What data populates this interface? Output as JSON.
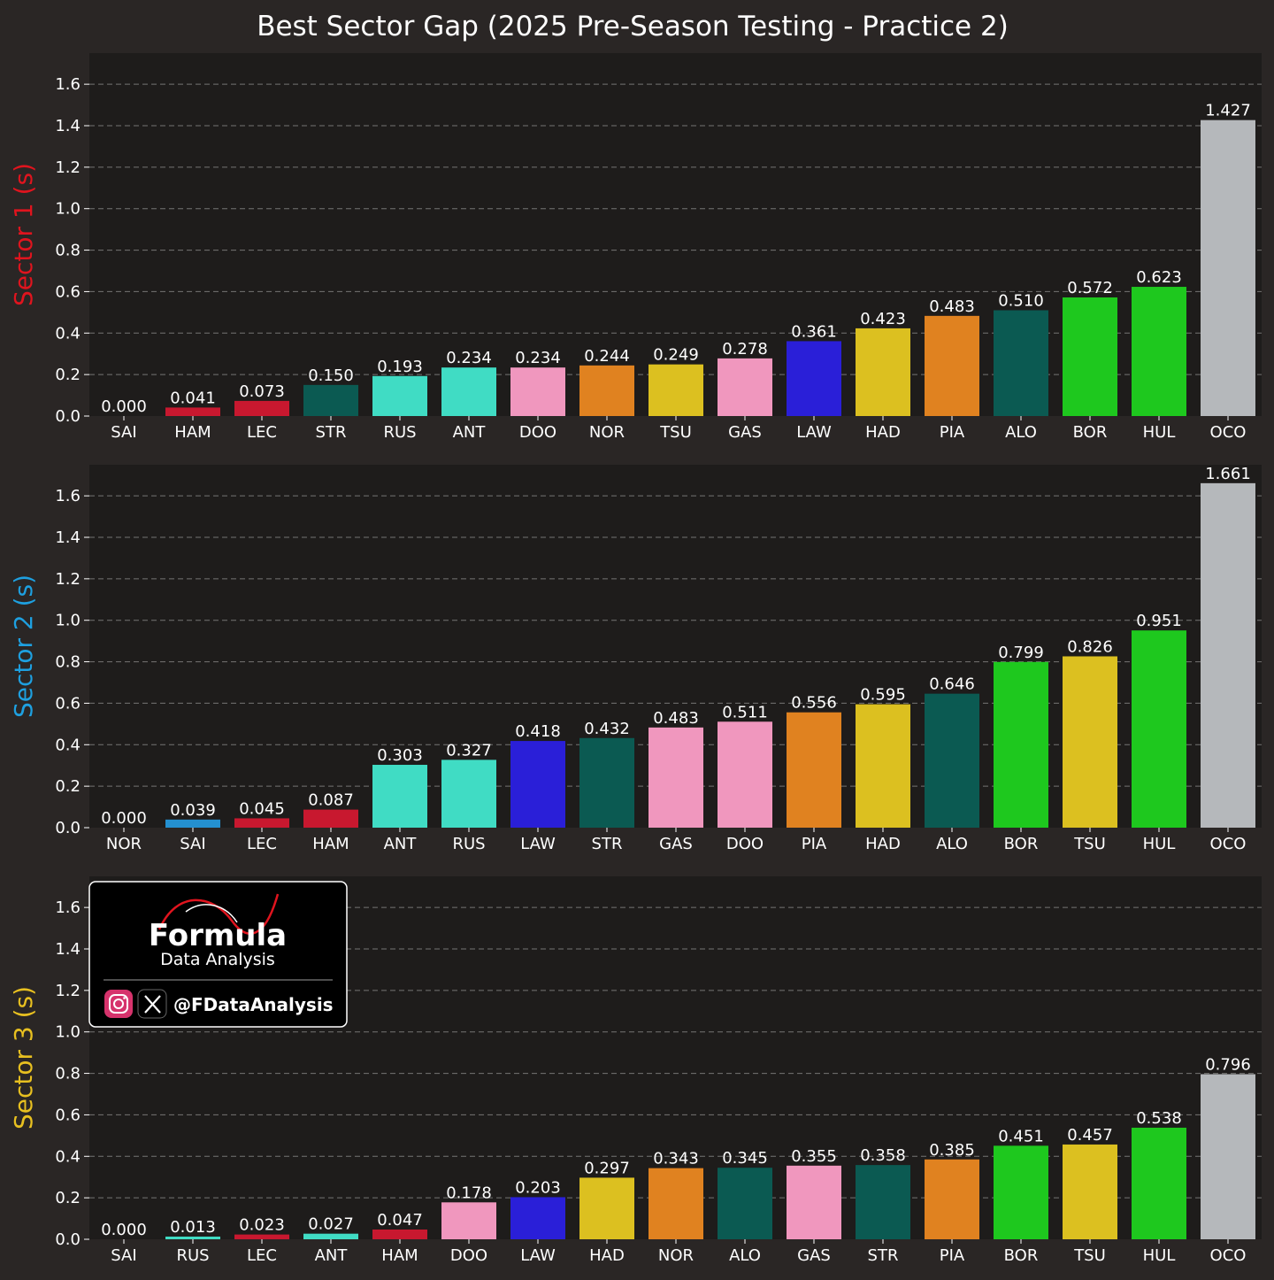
{
  "title": "Best Sector Gap (2025 Pre-Season Testing - Practice 2)",
  "theme": {
    "figure_bg": "#2a2625",
    "axes_bg": "#1e1c1b",
    "grid_color": "#8a8a8a",
    "text_color": "#ffffff"
  },
  "team_colors": {
    "ferrari": "#c8182f",
    "aston_martin": "#0b5a52",
    "mercedes": "#40dcc4",
    "alpine": "#f097be",
    "mclaren": "#e08220",
    "racing_bulls": "#dcc020",
    "red_bull": "#2a1fd8",
    "sauber": "#1ec81e",
    "haas": "#b5b8bb",
    "williams": "#2490d0"
  },
  "watermark": {
    "brand_line1": "Formula",
    "brand_line2": "Data Analysis",
    "handle": "@FDataAnalysis"
  },
  "chart_data": [
    {
      "type": "bar",
      "ylabel": "Sector 1 (s)",
      "ylabel_color": "#e0141e",
      "ylim": [
        0,
        1.75
      ],
      "yticks": [
        "0.0",
        "0.2",
        "0.4",
        "0.6",
        "0.8",
        "1.0",
        "1.2",
        "1.4",
        "1.6"
      ],
      "grid": true,
      "categories": [
        "SAI",
        "HAM",
        "LEC",
        "STR",
        "RUS",
        "ANT",
        "DOO",
        "NOR",
        "TSU",
        "GAS",
        "LAW",
        "HAD",
        "PIA",
        "ALO",
        "BOR",
        "HUL",
        "OCO"
      ],
      "values": [
        0.0,
        0.041,
        0.073,
        0.15,
        0.193,
        0.234,
        0.234,
        0.244,
        0.249,
        0.278,
        0.361,
        0.423,
        0.483,
        0.51,
        0.572,
        0.623,
        1.427
      ],
      "labels": [
        "0.000",
        "0.041",
        "0.073",
        "0.150",
        "0.193",
        "0.234",
        "0.234",
        "0.244",
        "0.249",
        "0.278",
        "0.361",
        "0.423",
        "0.483",
        "0.510",
        "0.572",
        "0.623",
        "1.427"
      ],
      "colors": [
        "#2490d0",
        "#c8182f",
        "#c8182f",
        "#0b5a52",
        "#40dcc4",
        "#40dcc4",
        "#f097be",
        "#e08220",
        "#dcc020",
        "#f097be",
        "#2a1fd8",
        "#dcc020",
        "#e08220",
        "#0b5a52",
        "#1ec81e",
        "#1ec81e",
        "#b5b8bb"
      ]
    },
    {
      "type": "bar",
      "ylabel": "Sector 2 (s)",
      "ylabel_color": "#1ea0e0",
      "ylim": [
        0,
        1.75
      ],
      "yticks": [
        "0.0",
        "0.2",
        "0.4",
        "0.6",
        "0.8",
        "1.0",
        "1.2",
        "1.4",
        "1.6"
      ],
      "grid": true,
      "categories": [
        "NOR",
        "SAI",
        "LEC",
        "HAM",
        "ANT",
        "RUS",
        "LAW",
        "STR",
        "GAS",
        "DOO",
        "PIA",
        "HAD",
        "ALO",
        "BOR",
        "TSU",
        "HUL",
        "OCO"
      ],
      "values": [
        0.0,
        0.039,
        0.045,
        0.087,
        0.303,
        0.327,
        0.418,
        0.432,
        0.483,
        0.511,
        0.556,
        0.595,
        0.646,
        0.799,
        0.826,
        0.951,
        1.661
      ],
      "labels": [
        "0.000",
        "0.039",
        "0.045",
        "0.087",
        "0.303",
        "0.327",
        "0.418",
        "0.432",
        "0.483",
        "0.511",
        "0.556",
        "0.595",
        "0.646",
        "0.799",
        "0.826",
        "0.951",
        "1.661"
      ],
      "colors": [
        "#e08220",
        "#2490d0",
        "#c8182f",
        "#c8182f",
        "#40dcc4",
        "#40dcc4",
        "#2a1fd8",
        "#0b5a52",
        "#f097be",
        "#f097be",
        "#e08220",
        "#dcc020",
        "#0b5a52",
        "#1ec81e",
        "#dcc020",
        "#1ec81e",
        "#b5b8bb"
      ]
    },
    {
      "type": "bar",
      "ylabel": "Sector 3 (s)",
      "ylabel_color": "#e8c020",
      "ylim": [
        0,
        1.75
      ],
      "yticks": [
        "0.0",
        "0.2",
        "0.4",
        "0.6",
        "0.8",
        "1.0",
        "1.2",
        "1.4",
        "1.6"
      ],
      "grid": true,
      "categories": [
        "SAI",
        "RUS",
        "LEC",
        "ANT",
        "HAM",
        "DOO",
        "LAW",
        "HAD",
        "NOR",
        "ALO",
        "GAS",
        "STR",
        "PIA",
        "BOR",
        "TSU",
        "HUL",
        "OCO"
      ],
      "values": [
        0.0,
        0.013,
        0.023,
        0.027,
        0.047,
        0.178,
        0.203,
        0.297,
        0.343,
        0.345,
        0.355,
        0.358,
        0.385,
        0.451,
        0.457,
        0.538,
        0.796
      ],
      "labels": [
        "0.000",
        "0.013",
        "0.023",
        "0.027",
        "0.047",
        "0.178",
        "0.203",
        "0.297",
        "0.343",
        "0.345",
        "0.355",
        "0.358",
        "0.385",
        "0.451",
        "0.457",
        "0.538",
        "0.796"
      ],
      "colors": [
        "#2490d0",
        "#40dcc4",
        "#c8182f",
        "#40dcc4",
        "#c8182f",
        "#f097be",
        "#2a1fd8",
        "#dcc020",
        "#e08220",
        "#0b5a52",
        "#f097be",
        "#0b5a52",
        "#e08220",
        "#1ec81e",
        "#dcc020",
        "#1ec81e",
        "#b5b8bb"
      ]
    }
  ]
}
